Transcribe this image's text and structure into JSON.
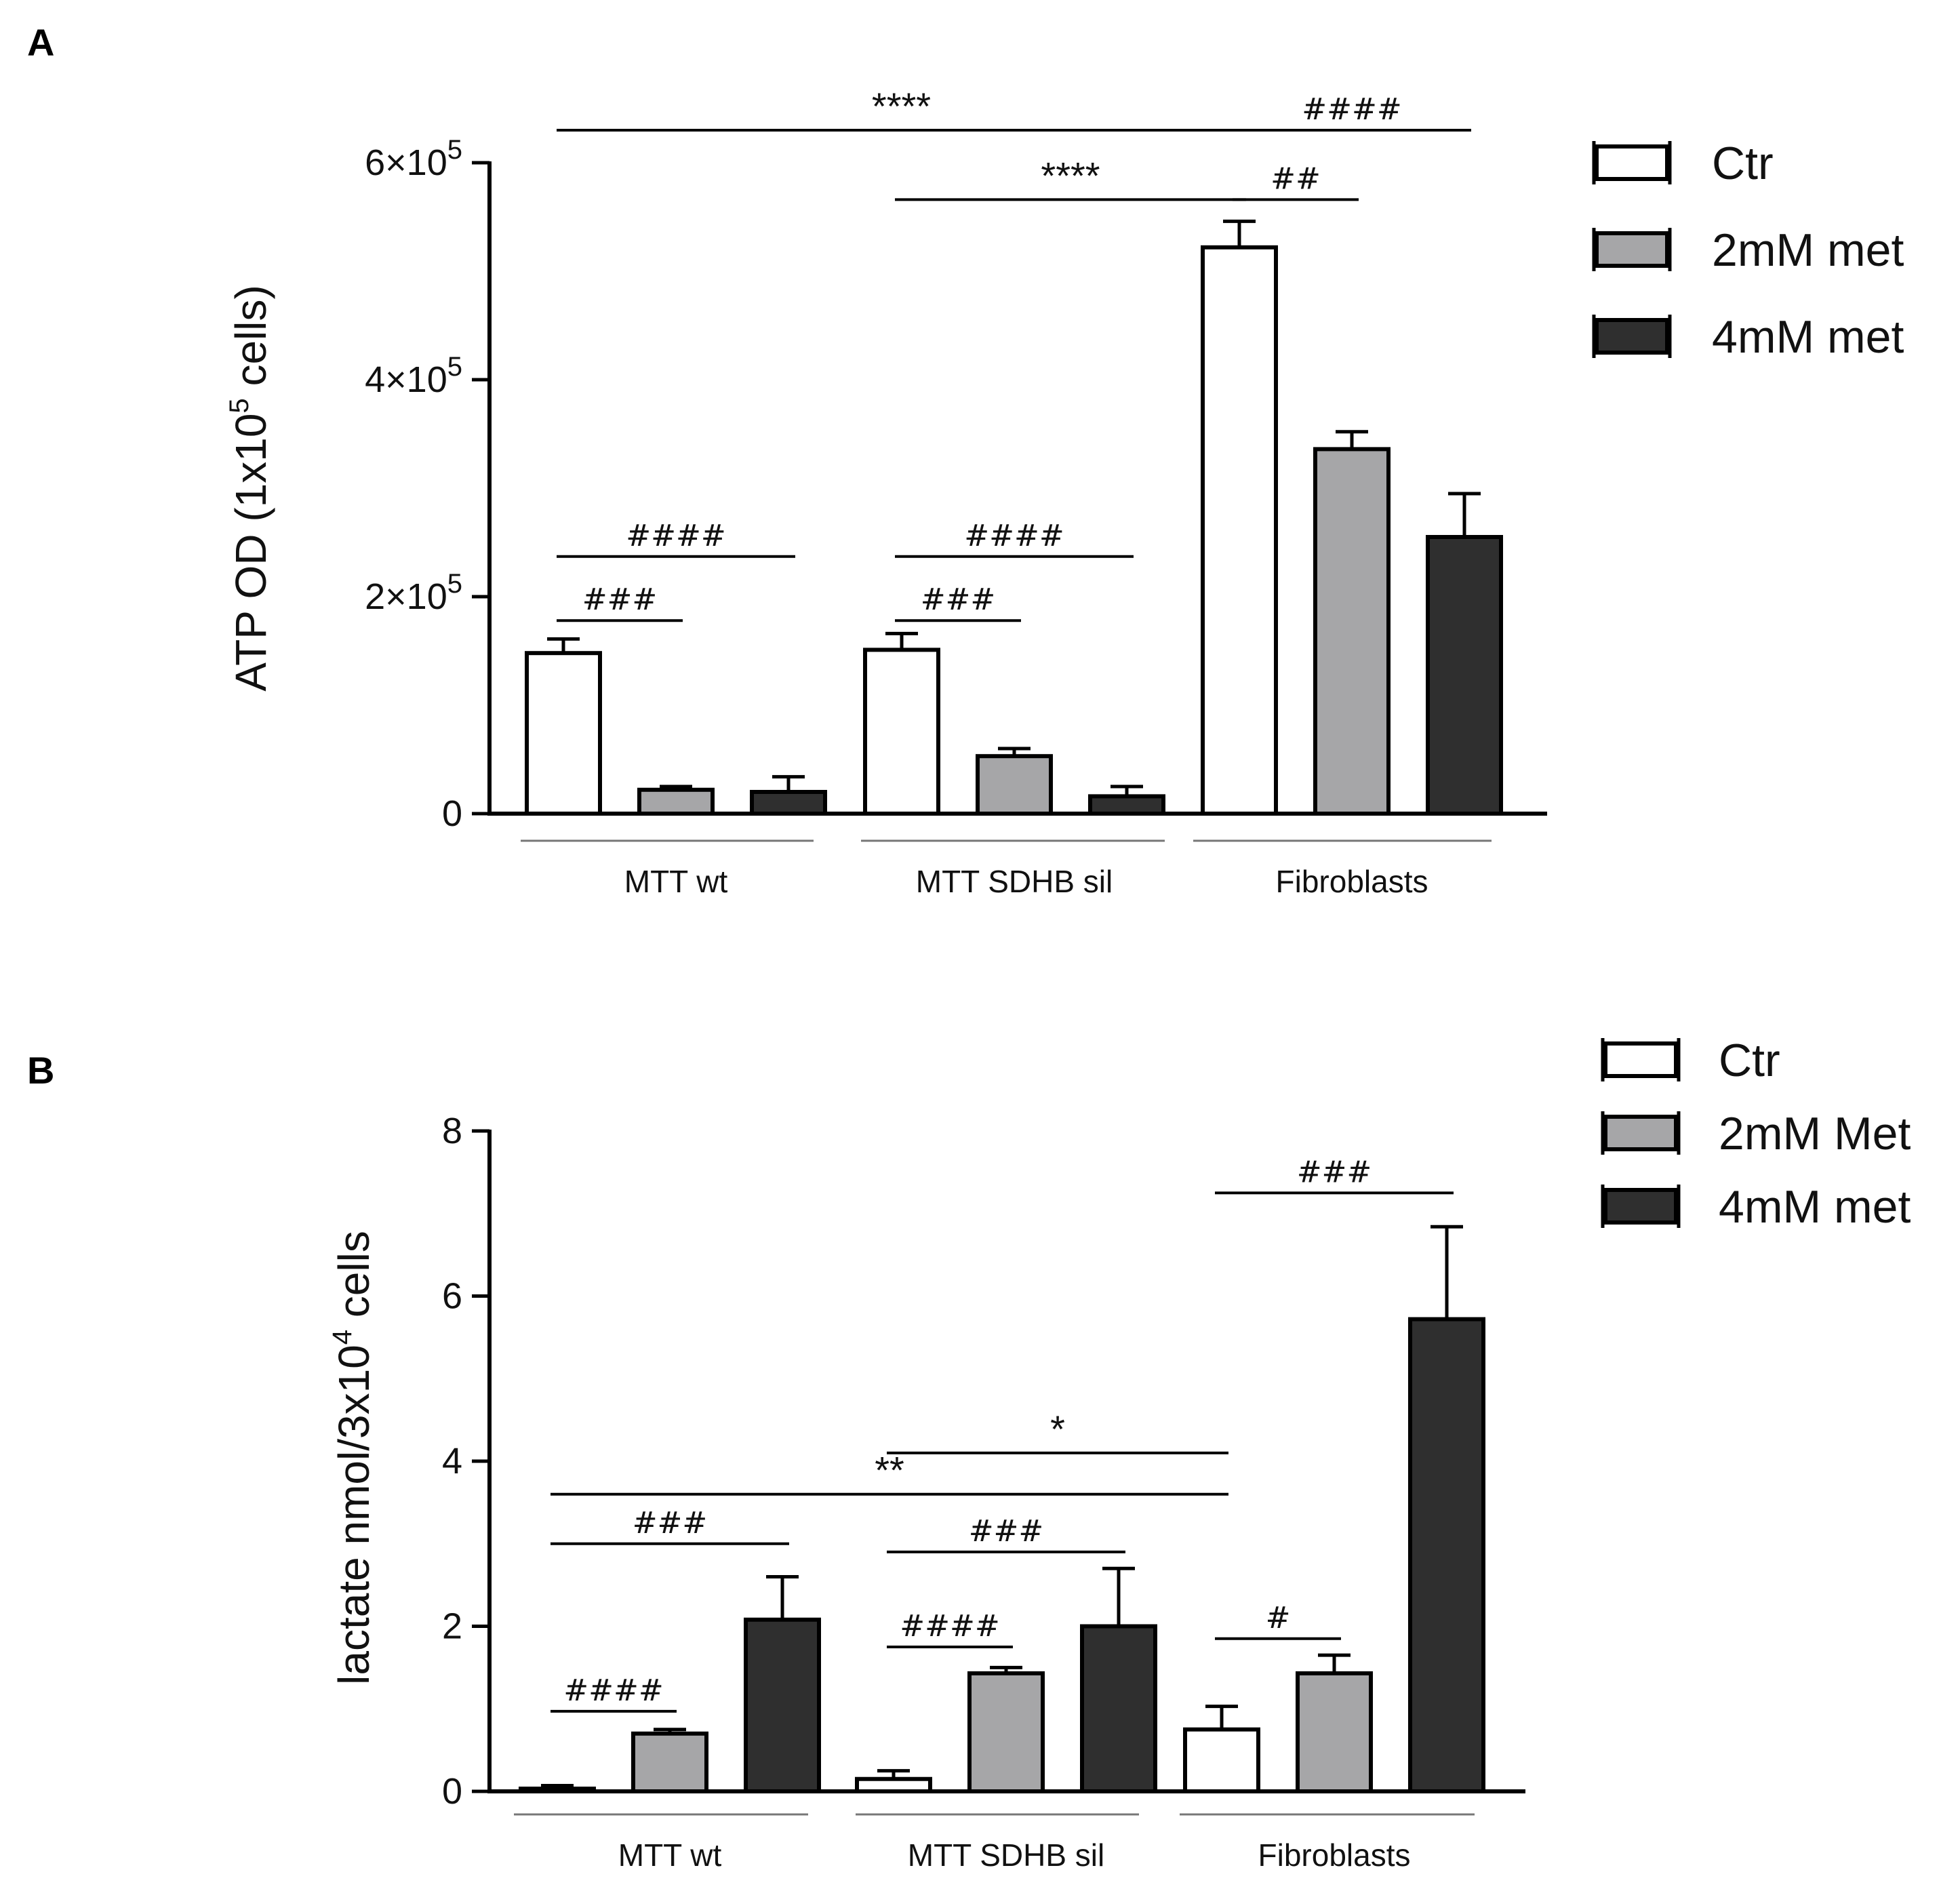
{
  "chart_data": [
    {
      "type": "bar",
      "panel": "A",
      "ylabel": "ATP OD (1x10",
      "ylabel_sup": "5",
      "ylabel_tail": " cells)",
      "ylim": [
        0,
        600000
      ],
      "yticks": [
        {
          "value": 0,
          "base": "0",
          "exp": ""
        },
        {
          "value": 200000,
          "base": "2×10",
          "exp": "5"
        },
        {
          "value": 400000,
          "base": "4×10",
          "exp": "5"
        },
        {
          "value": 600000,
          "base": "6×10",
          "exp": "5"
        }
      ],
      "categories": [
        "MTT wt",
        "MTT SDHB sil",
        "Fibroblasts"
      ],
      "series": [
        {
          "name": "Ctr",
          "color": "#ffffff",
          "values": [
            148000,
            151000,
            522000
          ],
          "errors": [
            13000,
            15000,
            24000
          ]
        },
        {
          "name": "2mM met",
          "color": "#a6a6a8",
          "values": [
            22000,
            53000,
            336000
          ],
          "errors": [
            3000,
            7000,
            16000
          ]
        },
        {
          "name": "4mM met",
          "color": "#2f2f2f",
          "values": [
            20000,
            16000,
            255000
          ],
          "errors": [
            14000,
            9000,
            40000
          ]
        }
      ],
      "annotations": [
        {
          "label": "###",
          "from": [
            0,
            0
          ],
          "to": [
            0,
            1
          ],
          "y": 178000,
          "kind": "hash"
        },
        {
          "label": "####",
          "from": [
            0,
            0
          ],
          "to": [
            0,
            2
          ],
          "y": 237000,
          "kind": "hash"
        },
        {
          "label": "###",
          "from": [
            1,
            0
          ],
          "to": [
            1,
            1
          ],
          "y": 178000,
          "kind": "hash"
        },
        {
          "label": "####",
          "from": [
            1,
            0
          ],
          "to": [
            1,
            2
          ],
          "y": 237000,
          "kind": "hash"
        },
        {
          "label": "##",
          "from": [
            2,
            0
          ],
          "to": [
            2,
            1
          ],
          "y": 566000,
          "kind": "hash"
        },
        {
          "label": "####",
          "from": [
            2,
            0
          ],
          "to": [
            2,
            2
          ],
          "y": 630000,
          "kind": "hash"
        },
        {
          "label": "****",
          "from": [
            1,
            0
          ],
          "to": [
            2,
            0
          ],
          "y": 566000,
          "kind": "star"
        },
        {
          "label": "****",
          "from": [
            0,
            0
          ],
          "to": [
            2,
            0
          ],
          "y": 630000,
          "kind": "star"
        }
      ]
    },
    {
      "type": "bar",
      "panel": "B",
      "ylabel": "lactate nmol/3x10",
      "ylabel_sup": "4",
      "ylabel_tail": " cells",
      "ylim": [
        0,
        8
      ],
      "yticks": [
        {
          "value": 0,
          "base": "0",
          "exp": ""
        },
        {
          "value": 2,
          "base": "2",
          "exp": ""
        },
        {
          "value": 4,
          "base": "4",
          "exp": ""
        },
        {
          "value": 6,
          "base": "6",
          "exp": ""
        },
        {
          "value": 8,
          "base": "8",
          "exp": ""
        }
      ],
      "categories": [
        "MTT wt",
        "MTT SDHB sil",
        "Fibroblasts"
      ],
      "series": [
        {
          "name": "Ctr",
          "color": "#ffffff",
          "values": [
            0.03,
            0.15,
            0.75
          ],
          "errors": [
            0.04,
            0.1,
            0.28
          ]
        },
        {
          "name": "2mM Met",
          "color": "#a6a6a8",
          "values": [
            0.7,
            1.43,
            1.43
          ],
          "errors": [
            0.05,
            0.07,
            0.22
          ]
        },
        {
          "name": "4mM met",
          "color": "#2f2f2f",
          "values": [
            2.08,
            2.0,
            5.72
          ],
          "errors": [
            0.52,
            0.7,
            1.12
          ]
        }
      ],
      "annotations": [
        {
          "label": "####",
          "from": [
            0,
            0
          ],
          "to": [
            0,
            1
          ],
          "y": 0.97,
          "kind": "hash"
        },
        {
          "label": "###",
          "from": [
            0,
            0
          ],
          "to": [
            0,
            2
          ],
          "y": 3.0,
          "kind": "hash"
        },
        {
          "label": "####",
          "from": [
            1,
            0
          ],
          "to": [
            1,
            1
          ],
          "y": 1.75,
          "kind": "hash"
        },
        {
          "label": "###",
          "from": [
            1,
            0
          ],
          "to": [
            1,
            2
          ],
          "y": 2.9,
          "kind": "hash"
        },
        {
          "label": "#",
          "from": [
            2,
            0
          ],
          "to": [
            2,
            1
          ],
          "y": 1.85,
          "kind": "hash"
        },
        {
          "label": "###",
          "from": [
            2,
            0
          ],
          "to": [
            2,
            2
          ],
          "y": 7.25,
          "kind": "hash"
        },
        {
          "label": "*",
          "from": [
            1,
            0
          ],
          "to": [
            2,
            0
          ],
          "y": 4.1,
          "kind": "star"
        },
        {
          "label": "**",
          "from": [
            0,
            0
          ],
          "to": [
            2,
            0
          ],
          "y": 3.6,
          "kind": "star"
        }
      ]
    }
  ]
}
